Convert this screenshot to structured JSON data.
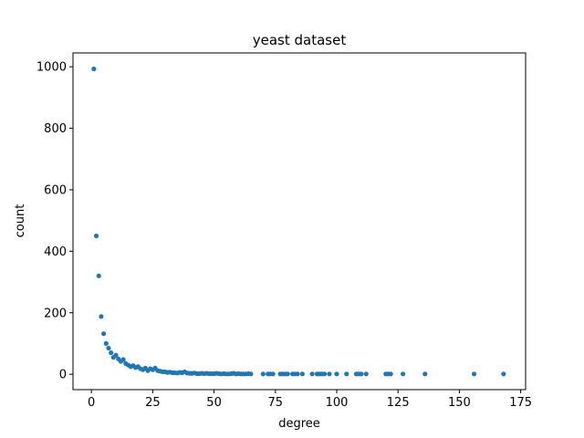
{
  "chart_data": {
    "type": "scatter",
    "title": "yeast dataset",
    "xlabel": "degree",
    "ylabel": "count",
    "xlim": [
      -7.5,
      177
    ],
    "ylim": [
      -50,
      1045
    ],
    "xticks": [
      0,
      25,
      50,
      75,
      100,
      125,
      150,
      175
    ],
    "yticks": [
      0,
      200,
      400,
      600,
      800,
      1000
    ],
    "grid": false,
    "marker_color": "#1f77b4",
    "series": [
      {
        "name": "",
        "x": [
          1,
          2,
          3,
          4,
          5,
          6,
          7,
          8,
          9,
          10,
          11,
          12,
          13,
          14,
          15,
          16,
          17,
          18,
          19,
          20,
          21,
          22,
          23,
          24,
          25,
          26,
          27,
          28,
          29,
          30,
          31,
          32,
          33,
          34,
          35,
          36,
          37,
          38,
          39,
          40,
          41,
          42,
          43,
          44,
          45,
          46,
          47,
          48,
          49,
          50,
          51,
          52,
          53,
          54,
          55,
          56,
          57,
          58,
          59,
          60,
          61,
          62,
          63,
          64,
          65,
          70,
          72,
          73,
          74,
          77,
          78,
          79,
          80,
          82,
          83,
          84,
          86,
          90,
          92,
          93,
          94,
          95,
          97,
          100,
          104,
          108,
          109,
          110,
          112,
          120,
          121,
          122,
          127,
          136,
          156,
          168
        ],
        "y": [
          993,
          450,
          320,
          188,
          132,
          100,
          85,
          70,
          55,
          62,
          50,
          42,
          48,
          35,
          30,
          25,
          28,
          22,
          25,
          18,
          15,
          20,
          12,
          18,
          15,
          20,
          12,
          10,
          8,
          8,
          6,
          7,
          5,
          5,
          4,
          6,
          5,
          8,
          4,
          3,
          3,
          4,
          2,
          2,
          3,
          2,
          3,
          2,
          2,
          2,
          3,
          2,
          1,
          2,
          1,
          1,
          2,
          3,
          1,
          2,
          1,
          1,
          1,
          2,
          1,
          1,
          1,
          1,
          1,
          1,
          1,
          1,
          1,
          1,
          1,
          1,
          1,
          1,
          1,
          1,
          1,
          1,
          1,
          1,
          1,
          1,
          1,
          1,
          1,
          1,
          1,
          1,
          1,
          1,
          1,
          1
        ]
      }
    ]
  }
}
